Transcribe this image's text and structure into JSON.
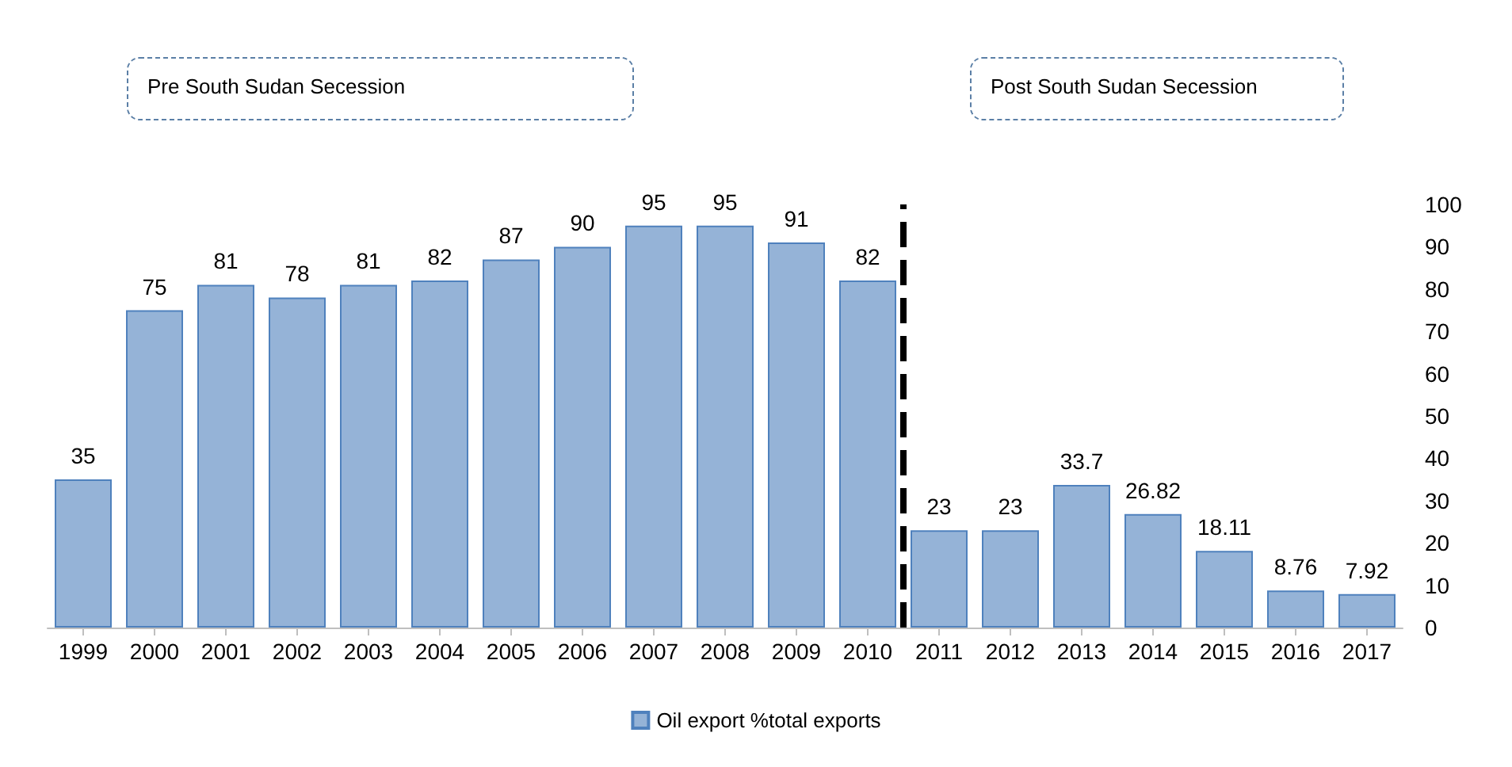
{
  "chart_data": {
    "type": "bar",
    "x": [
      1999,
      2000,
      2001,
      2002,
      2003,
      2004,
      2005,
      2006,
      2007,
      2008,
      2009,
      2010,
      2011,
      2012,
      2013,
      2014,
      2015,
      2016,
      2017
    ],
    "series": [
      {
        "name": "Oil export %total exports",
        "color": "#95b3d7",
        "values": [
          35,
          75,
          81,
          78,
          81,
          82,
          87,
          90,
          95,
          95,
          91,
          82,
          23,
          23,
          33.7,
          26.82,
          18.11,
          8.76,
          7.92
        ]
      }
    ],
    "xlim": [
      1998.5,
      2017.5
    ],
    "xticks": [
      1999,
      2000,
      2001,
      2002,
      2003,
      2004,
      2005,
      2006,
      2007,
      2008,
      2009,
      2010,
      2011,
      2012,
      2013,
      2014,
      2015,
      2016,
      2017
    ],
    "ylim": [
      0,
      100
    ],
    "yticks": [
      0,
      10,
      20,
      30,
      40,
      50,
      60,
      70,
      80,
      90,
      100
    ],
    "ref_lines": [
      {
        "axis": "x",
        "value": 2010.5,
        "color": "#000000",
        "line_style": "dashed"
      }
    ],
    "annotations": [
      "Pre South Sudan  Secession",
      "Post South Sudan Secession"
    ],
    "data_labels": true,
    "grid": false,
    "legend": "bottom"
  }
}
